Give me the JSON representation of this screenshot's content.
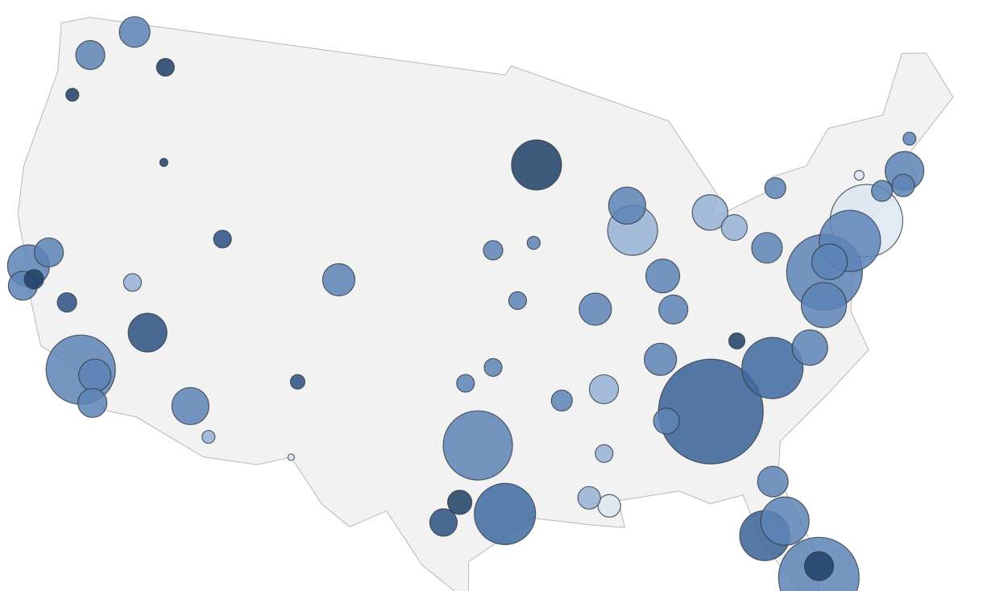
{
  "chart_data": {
    "type": "bubble-map",
    "lon": [
      -84.4,
      -80.8,
      -74.0,
      -77.0,
      -80.2,
      -118.2,
      -96.8,
      -95.4,
      -75.2,
      -122.4,
      -93.3,
      -87.7,
      -82.5,
      -77.4,
      -81.4,
      -112.1,
      -115.1,
      -71.1,
      -87.9,
      -83.0,
      -119.9,
      -122.3,
      -86.2,
      -122.4,
      -85.8,
      -86.8,
      -90.2,
      -78.6,
      -76.6,
      -80.0,
      -117.4,
      -121.5,
      -81.7,
      -117.2,
      -90.0,
      -98.5,
      -104.9,
      -80.1,
      -81.7,
      -86.8,
      -97.7,
      -82.5,
      -71.4,
      -92.3,
      -90.1,
      -91.1,
      -78.9,
      -72.7,
      -96.0,
      -121.9,
      -119.8,
      -116.5,
      -111.9,
      -97.5,
      -96.0,
      -94.6,
      -90.2,
      -117.4,
      -106.6,
      -93.6,
      -110.9,
      -70.3,
      -122.7,
      -116.2,
      -73.8,
      -106.5
    ],
    "lat": [
      33.7,
      35.2,
      40.7,
      38.9,
      25.8,
      34.0,
      32.8,
      29.8,
      40.0,
      37.8,
      45.0,
      41.9,
      28.0,
      37.5,
      28.5,
      33.4,
      36.2,
      42.4,
      43.0,
      42.3,
      48.9,
      47.4,
      39.8,
      36.9,
      38.3,
      36.2,
      38.6,
      35.8,
      39.3,
      40.4,
      33.9,
      38.6,
      41.5,
      32.7,
      35.1,
      29.4,
      39.7,
      26.3,
      30.3,
      33.5,
      30.3,
      36.6,
      41.8,
      34.7,
      30.0,
      30.4,
      42.9,
      41.8,
      36.2,
      37.3,
      36.7,
      38.2,
      40.8,
      35.5,
      41.3,
      39.1,
      32.3,
      47.7,
      35.1,
      41.6,
      32.2,
      43.7,
      45.5,
      43.6,
      42.7,
      31.8
    ],
    "sizes": [
      4225,
      1444,
      2025,
      2209,
      2500,
      1849,
      1849,
      1444,
      1444,
      676,
      961,
      961,
      961,
      784,
      900,
      529,
      576,
      576,
      529,
      484,
      361,
      324,
      441,
      324,
      324,
      400,
      400,
      484,
      484,
      361,
      400,
      324,
      256,
      324,
      324,
      289,
      400,
      324,
      361,
      256,
      225,
      100,
      196,
      169,
      196,
      196,
      169,
      169,
      121,
      144,
      144,
      121,
      121,
      121,
      144,
      121,
      121,
      121,
      81,
      64,
      64,
      64,
      64,
      25,
      36,
      16
    ],
    "colors": [
      "#3a6296",
      "#3f6a9f",
      "#dde6f1",
      "#5d84b6",
      "#5d84b6",
      "#5d84b6",
      "#5d84b6",
      "#3f6a9f",
      "#5d84b6",
      "#5d84b6",
      "#1f3f66",
      "#96b2d6",
      "#3a6296",
      "#5d84b6",
      "#5d84b6",
      "#5d84b6",
      "#2b5182",
      "#5d84b6",
      "#5d84b6",
      "#96b2d6",
      "#5d84b6",
      "#5d84b6",
      "#5d84b6",
      "#5d84b6",
      "#5d84b6",
      "#5d84b6",
      "#5d84b6",
      "#5d84b6",
      "#5d84b6",
      "#5d84b6",
      "#5d84b6",
      "#5d84b6",
      "#96b2d6",
      "#5d84b6",
      "#96b2d6",
      "#2b5182",
      "#5d84b6",
      "#1f3f66",
      "#5d84b6",
      "#5d84b6",
      "#1f3f66",
      "#1f3f66",
      "#5d84b6",
      "#5d84b6",
      "#dde6f1",
      "#96b2d6",
      "#5d84b6",
      "#5d84b6",
      "#5d84b6",
      "#1f3f66",
      "#2b5182",
      "#96b2d6",
      "#2b5182",
      "#5d84b6",
      "#5d84b6",
      "#5d84b6",
      "#96b2d6",
      "#1f3f66",
      "#2b5182",
      "#5d84b6",
      "#96b2d6",
      "#5d84b6",
      "#1f3f66",
      "#1f3f66",
      "#dde6f1",
      "#dde6f1"
    ]
  }
}
